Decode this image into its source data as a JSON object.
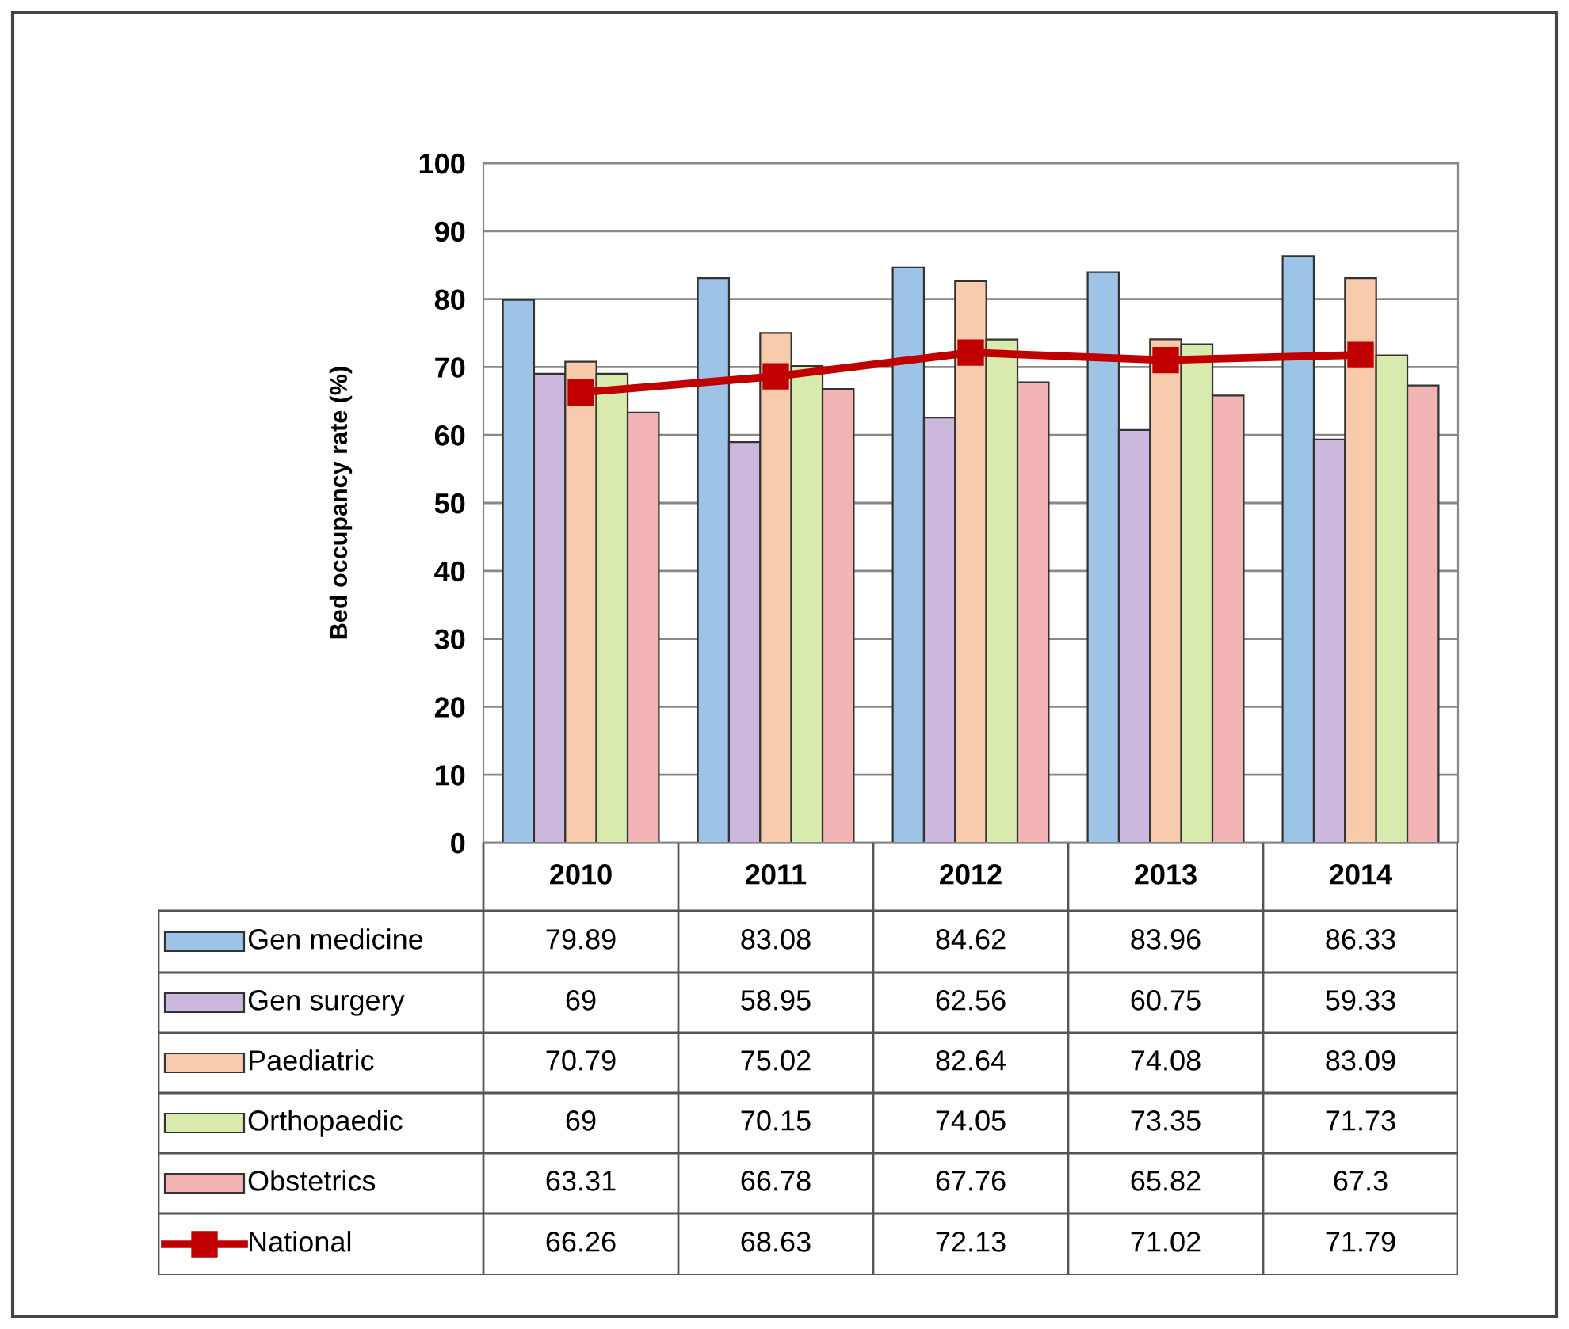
{
  "chart_data": {
    "type": "bar",
    "ylabel": "Bed occupancy rate (%)",
    "categories": [
      "2010",
      "2011",
      "2012",
      "2013",
      "2014"
    ],
    "series": [
      {
        "name": "Gen medicine",
        "color": "#9dc3e6",
        "values": [
          79.89,
          83.08,
          84.62,
          83.96,
          86.33
        ]
      },
      {
        "name": "Gen surgery",
        "color": "#ccb8dc",
        "values": [
          69,
          58.95,
          62.56,
          60.75,
          59.33
        ]
      },
      {
        "name": "Paediatric",
        "color": "#f8cbad",
        "values": [
          70.79,
          75.02,
          82.64,
          74.08,
          83.09
        ]
      },
      {
        "name": "Orthopaedic",
        "color": "#d9eaae",
        "values": [
          69,
          70.15,
          74.05,
          73.35,
          71.73
        ]
      },
      {
        "name": "Obstetrics",
        "color": "#f2b4b4",
        "values": [
          63.31,
          66.78,
          67.76,
          65.82,
          67.3
        ]
      },
      {
        "name": "National",
        "color": "#c00000",
        "type": "line",
        "marker": "square",
        "values": [
          66.26,
          68.63,
          72.13,
          71.02,
          71.79
        ]
      }
    ],
    "ylim": [
      0,
      100
    ],
    "yticks": [
      0,
      10,
      20,
      30,
      40,
      50,
      60,
      70,
      80,
      90,
      100
    ],
    "grid": "y",
    "legend": "bottom",
    "data_labels": true
  }
}
